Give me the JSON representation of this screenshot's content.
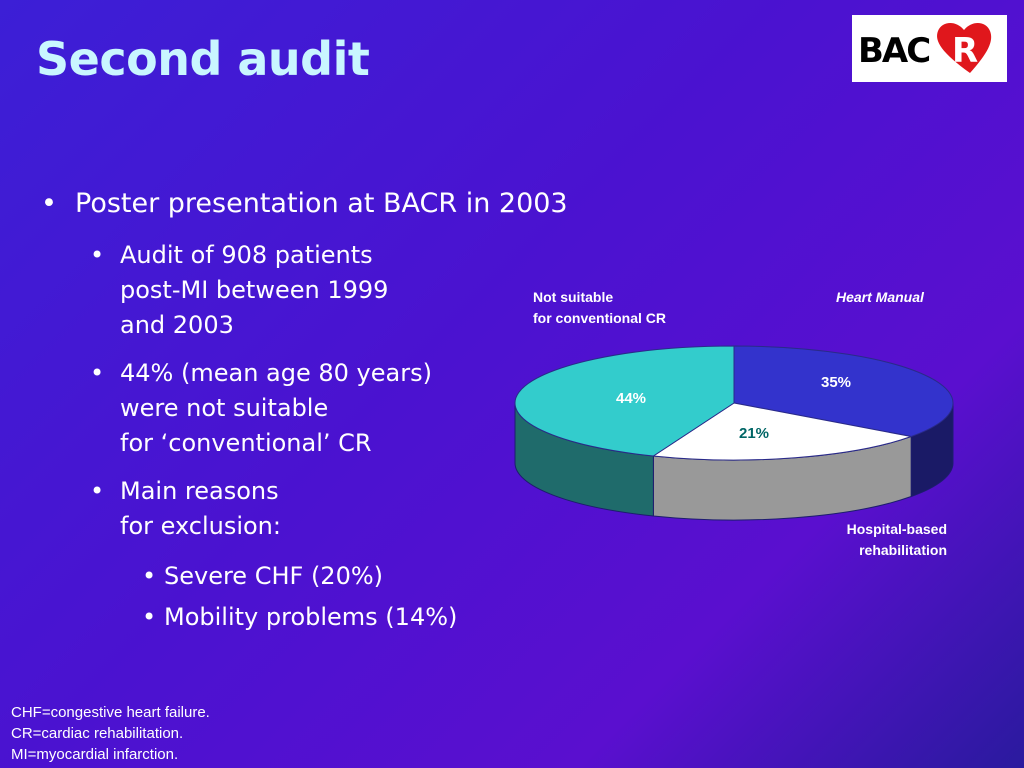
{
  "slide": {
    "title": "Second audit",
    "logo_text": "BACR"
  },
  "bullets": {
    "level1": "Poster presentation at BACR in 2003",
    "audit": [
      "Audit of 908 patients",
      "post-MI between 1999",
      "and 2003"
    ],
    "pct": [
      "44% (mean age 80 years)",
      "were not suitable",
      "for ‘conventional’ CR"
    ],
    "reasons": [
      "Main reasons",
      "for exclusion:"
    ],
    "sub": [
      "Severe CHF (20%)",
      "Mobility problems (14%)"
    ]
  },
  "chart_data": {
    "type": "pie",
    "title": "",
    "slices": [
      {
        "name": "Not suitable for conventional CR",
        "label_lines": [
          "Not suitable",
          "for conventional CR"
        ],
        "value": 44,
        "value_label": "44%",
        "color": "#33cccc"
      },
      {
        "name": "Heart Manual",
        "label_lines": [
          "Heart Manual"
        ],
        "value": 35,
        "value_label": "35%",
        "color": "#3333cc"
      },
      {
        "name": "Hospital-based rehabilitation",
        "label_lines": [
          "Hospital-based",
          "rehabilitation"
        ],
        "value": 21,
        "value_label": "21%",
        "color": "#ffffff"
      }
    ],
    "side_colors": [
      "#1f6b6b",
      "#1a1a66",
      "#999999"
    ]
  },
  "footnotes": [
    "CHF=congestive heart failure.",
    "CR=cardiac rehabilitation.",
    "MI=myocardial infarction."
  ],
  "colors": {
    "title": "#c9f6ff",
    "value_label_dark": "#ffffff",
    "value_label_light": "#006666"
  }
}
